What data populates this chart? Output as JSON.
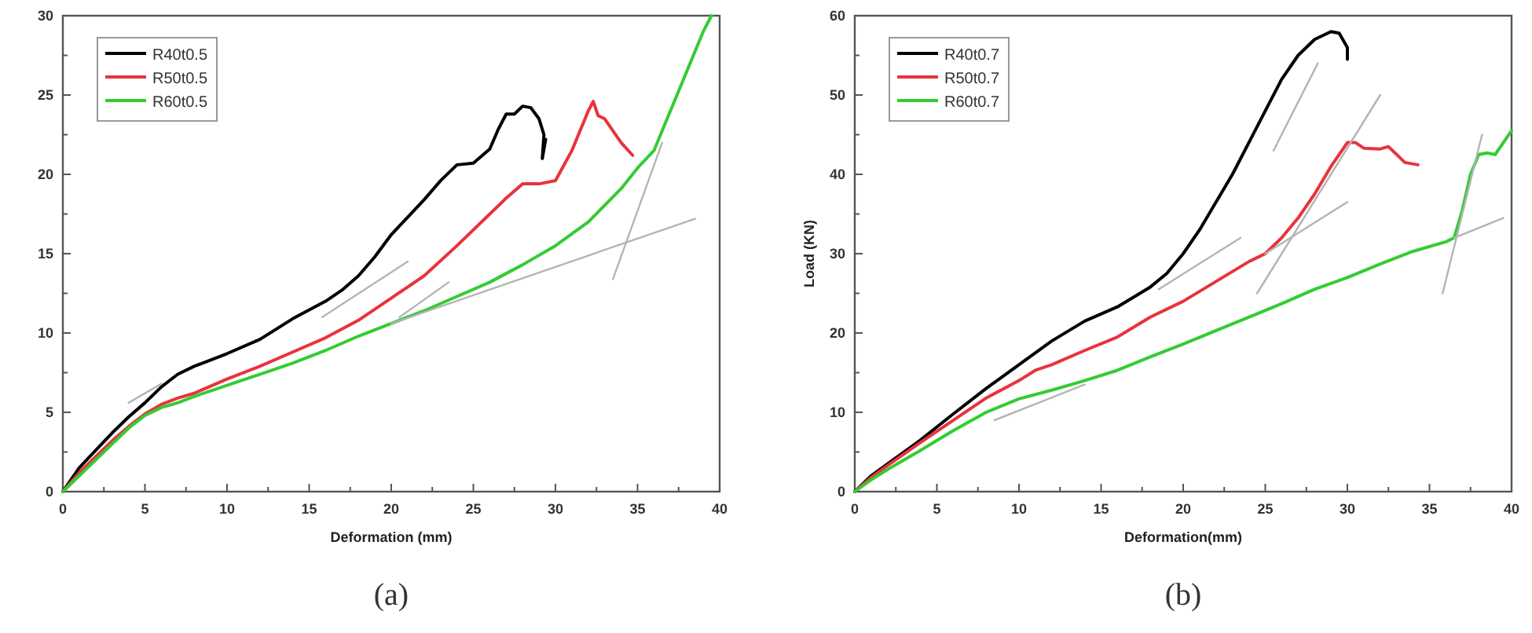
{
  "chart_data": [
    {
      "type": "line",
      "title": "(a)",
      "xlabel": "Deformation (mm)",
      "xlim": [
        0,
        40
      ],
      "ylim": [
        0,
        30
      ],
      "xticks": [
        0,
        {
          "value": 2.5,
          "label": null
        },
        5,
        {
          "value": 7.5,
          "label": null
        },
        10,
        {
          "value": 12.5,
          "label": null
        },
        15,
        {
          "value": 17.5,
          "label": null
        },
        20,
        {
          "value": 22.5,
          "label": null
        },
        25,
        {
          "value": 27.5,
          "label": null
        },
        30,
        {
          "value": 32.5,
          "label": null
        },
        35,
        {
          "value": 37.5,
          "label": null
        },
        40
      ],
      "yticks": [
        0,
        {
          "value": 2.5,
          "label": null
        },
        5,
        {
          "value": 7.5,
          "label": null
        },
        10,
        {
          "value": 12.5,
          "label": null
        },
        15,
        {
          "value": 17.5,
          "label": null
        },
        20,
        {
          "value": 22.5,
          "label": null
        },
        25,
        {
          "value": 27.5,
          "label": null
        },
        30
      ],
      "grid": false,
      "legend": "top left",
      "line_style": "solid",
      "series": [
        {
          "name": "R40t0.5",
          "color": "#000000",
          "x": [
            0,
            1,
            2,
            3,
            4,
            5,
            6,
            7,
            8,
            10,
            12,
            14,
            16,
            17,
            18,
            19,
            20,
            21,
            22,
            23,
            24,
            25,
            26,
            26.5,
            27,
            27.5,
            28,
            28.5,
            29,
            29.3,
            29.2,
            29.4
          ],
          "values": [
            0,
            1.5,
            2.6,
            3.7,
            4.7,
            5.6,
            6.6,
            7.4,
            7.9,
            8.7,
            9.6,
            10.9,
            12,
            12.7,
            13.6,
            14.8,
            16.2,
            17.3,
            18.4,
            19.6,
            20.6,
            20.7,
            21.6,
            22.8,
            23.8,
            23.8,
            24.3,
            24.2,
            23.5,
            22.5,
            21,
            22.2
          ]
        },
        {
          "name": "R50t0.5",
          "color": "#e8333d",
          "x": [
            0,
            1,
            2,
            3,
            4,
            5,
            6,
            7,
            8,
            10,
            12,
            14,
            16,
            18,
            20,
            22,
            24,
            26,
            27,
            28,
            29,
            30,
            31,
            32,
            32.3,
            32.6,
            33,
            34,
            34.7
          ],
          "values": [
            0,
            1.2,
            2.2,
            3.2,
            4.1,
            4.9,
            5.5,
            5.9,
            6.2,
            7.1,
            7.9,
            8.8,
            9.7,
            10.8,
            12.2,
            13.6,
            15.5,
            17.5,
            18.5,
            19.4,
            19.4,
            19.6,
            21.5,
            24,
            24.6,
            23.7,
            23.5,
            22,
            21.2
          ]
        },
        {
          "name": "R60t0.5",
          "color": "#33cc33",
          "x": [
            0,
            1,
            2,
            3,
            4,
            5,
            6,
            7,
            8,
            10,
            12,
            14,
            16,
            18,
            20,
            22,
            24,
            26,
            28,
            30,
            32,
            34,
            35,
            36,
            37,
            38,
            39,
            39.5
          ],
          "values": [
            0,
            1,
            2,
            3,
            4,
            4.8,
            5.3,
            5.6,
            6,
            6.7,
            7.4,
            8.1,
            8.9,
            9.8,
            10.6,
            11.4,
            12.3,
            13.2,
            14.3,
            15.5,
            17,
            19.1,
            20.4,
            21.5,
            24,
            26.5,
            29,
            30
          ]
        },
        {
          "color": "#b4b4b4",
          "x": [
            4,
            6
          ],
          "values": [
            5.6,
            6.8
          ]
        },
        {
          "color": "#b4b4b4",
          "x": [
            15.8,
            21
          ],
          "values": [
            11,
            14.5
          ]
        },
        {
          "color": "#b4b4b4",
          "x": [
            20.5,
            23.5
          ],
          "values": [
            11,
            13.2
          ]
        },
        {
          "color": "#b4b4b4",
          "x": [
            20,
            38.5
          ],
          "values": [
            10.6,
            17.2
          ]
        },
        {
          "color": "#b4b4b4",
          "x": [
            33.5,
            36.5
          ],
          "values": [
            13.4,
            22
          ]
        }
      ]
    },
    {
      "type": "line",
      "title": "(b)",
      "xlabel": "Deformation(mm)",
      "ylabel": "Load (KN)",
      "xlim": [
        0,
        40
      ],
      "ylim": [
        0,
        60
      ],
      "xticks": [
        0,
        {
          "value": 2.5,
          "label": null
        },
        5,
        {
          "value": 7.5,
          "label": null
        },
        10,
        {
          "value": 12.5,
          "label": null
        },
        15,
        {
          "value": 17.5,
          "label": null
        },
        20,
        {
          "value": 22.5,
          "label": null
        },
        25,
        {
          "value": 27.5,
          "label": null
        },
        30,
        {
          "value": 32.5,
          "label": null
        },
        35,
        {
          "value": 37.5,
          "label": null
        },
        40
      ],
      "yticks": [
        0,
        {
          "value": 5,
          "label": null
        },
        10,
        {
          "value": 15,
          "label": null
        },
        20,
        {
          "value": 25,
          "label": null
        },
        30,
        {
          "value": 35,
          "label": null
        },
        40,
        {
          "value": 45,
          "label": null
        },
        50,
        {
          "value": 55,
          "label": null
        },
        60
      ],
      "grid": false,
      "legend": "top left",
      "line_style": "solid",
      "series": [
        {
          "name": "R40t0.7",
          "color": "#000000",
          "x": [
            0,
            1,
            2,
            4,
            6,
            8,
            10,
            12,
            14,
            16,
            18,
            19,
            20,
            21,
            22,
            23,
            24,
            25,
            26,
            27,
            28,
            29,
            29.5,
            30,
            30
          ],
          "values": [
            0,
            2,
            3.5,
            6.5,
            9.8,
            13,
            16,
            19,
            21.5,
            23.3,
            25.8,
            27.5,
            30,
            33,
            36.5,
            40,
            44,
            48,
            52,
            55,
            57,
            58,
            57.8,
            56,
            54.5
          ]
        },
        {
          "name": "R50t0.7",
          "color": "#e8333d",
          "x": [
            0,
            1,
            2,
            4,
            6,
            8,
            10,
            11,
            12,
            14,
            16,
            18,
            20,
            22,
            24,
            25,
            26,
            27,
            28,
            29,
            30,
            30.5,
            31,
            32,
            32.5,
            33,
            33.5,
            34.3
          ],
          "values": [
            0,
            1.8,
            3.3,
            6.2,
            9,
            11.8,
            14,
            15.3,
            16,
            17.8,
            19.5,
            22,
            24,
            26.5,
            29,
            30,
            32,
            34.5,
            37.5,
            41,
            44,
            44,
            43.3,
            43.2,
            43.5,
            42.5,
            41.5,
            41.2
          ]
        },
        {
          "name": "R60t0.7",
          "color": "#33cc33",
          "x": [
            0,
            1,
            2,
            4,
            6,
            8,
            10,
            12,
            14,
            16,
            18,
            20,
            22,
            24,
            26,
            28,
            30,
            32,
            34,
            36,
            36.5,
            37,
            37.5,
            38,
            38.5,
            39,
            39.5,
            40
          ],
          "values": [
            0,
            1.5,
            2.8,
            5.2,
            7.7,
            10,
            11.7,
            12.8,
            14,
            15.3,
            17,
            18.6,
            20.3,
            22,
            23.7,
            25.5,
            27,
            28.7,
            30.3,
            31.5,
            32,
            35.5,
            40,
            42.5,
            42.7,
            42.5,
            44,
            45.5
          ]
        },
        {
          "color": "#b4b4b4",
          "x": [
            8.5,
            14
          ],
          "values": [
            9,
            13.5
          ]
        },
        {
          "color": "#b4b4b4",
          "x": [
            18.5,
            23.5
          ],
          "values": [
            25.5,
            32
          ]
        },
        {
          "color": "#b4b4b4",
          "x": [
            25.5,
            28.2
          ],
          "values": [
            43,
            54
          ]
        },
        {
          "color": "#b4b4b4",
          "x": [
            24.5,
            32
          ],
          "values": [
            25,
            50
          ]
        },
        {
          "color": "#b4b4b4",
          "x": [
            25,
            30
          ],
          "values": [
            30,
            36.5
          ]
        },
        {
          "color": "#b4b4b4",
          "x": [
            35.8,
            38.2
          ],
          "values": [
            25,
            45
          ]
        },
        {
          "color": "#b4b4b4",
          "x": [
            36.5,
            39.5
          ],
          "values": [
            32,
            34.5
          ]
        }
      ]
    }
  ]
}
